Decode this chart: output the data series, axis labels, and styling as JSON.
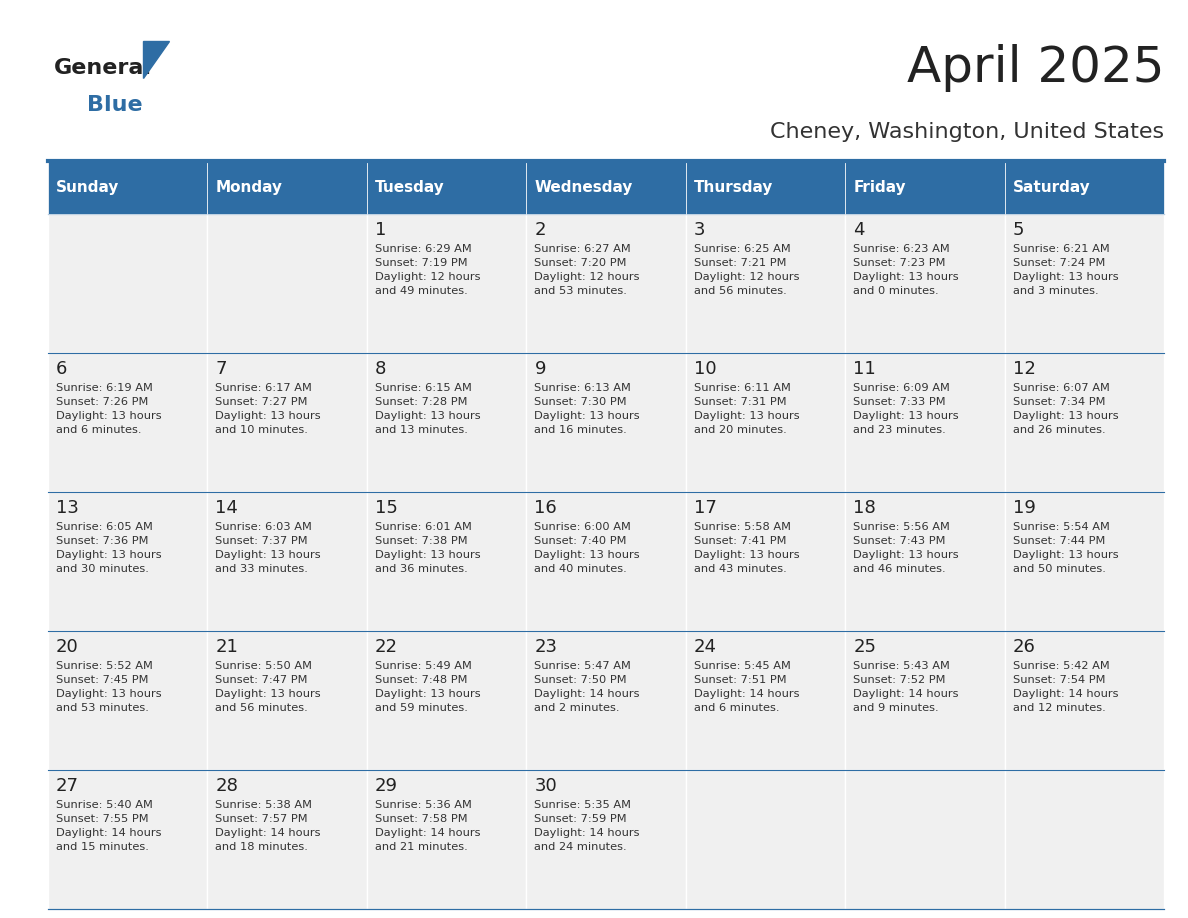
{
  "title": "April 2025",
  "subtitle": "Cheney, Washington, United States",
  "header_color": "#2E6DA4",
  "header_text_color": "#FFFFFF",
  "cell_bg_color": "#F0F0F0",
  "day_names": [
    "Sunday",
    "Monday",
    "Tuesday",
    "Wednesday",
    "Thursday",
    "Friday",
    "Saturday"
  ],
  "weeks": [
    [
      {
        "day": "",
        "info": ""
      },
      {
        "day": "",
        "info": ""
      },
      {
        "day": "1",
        "info": "Sunrise: 6:29 AM\nSunset: 7:19 PM\nDaylight: 12 hours\nand 49 minutes."
      },
      {
        "day": "2",
        "info": "Sunrise: 6:27 AM\nSunset: 7:20 PM\nDaylight: 12 hours\nand 53 minutes."
      },
      {
        "day": "3",
        "info": "Sunrise: 6:25 AM\nSunset: 7:21 PM\nDaylight: 12 hours\nand 56 minutes."
      },
      {
        "day": "4",
        "info": "Sunrise: 6:23 AM\nSunset: 7:23 PM\nDaylight: 13 hours\nand 0 minutes."
      },
      {
        "day": "5",
        "info": "Sunrise: 6:21 AM\nSunset: 7:24 PM\nDaylight: 13 hours\nand 3 minutes."
      }
    ],
    [
      {
        "day": "6",
        "info": "Sunrise: 6:19 AM\nSunset: 7:26 PM\nDaylight: 13 hours\nand 6 minutes."
      },
      {
        "day": "7",
        "info": "Sunrise: 6:17 AM\nSunset: 7:27 PM\nDaylight: 13 hours\nand 10 minutes."
      },
      {
        "day": "8",
        "info": "Sunrise: 6:15 AM\nSunset: 7:28 PM\nDaylight: 13 hours\nand 13 minutes."
      },
      {
        "day": "9",
        "info": "Sunrise: 6:13 AM\nSunset: 7:30 PM\nDaylight: 13 hours\nand 16 minutes."
      },
      {
        "day": "10",
        "info": "Sunrise: 6:11 AM\nSunset: 7:31 PM\nDaylight: 13 hours\nand 20 minutes."
      },
      {
        "day": "11",
        "info": "Sunrise: 6:09 AM\nSunset: 7:33 PM\nDaylight: 13 hours\nand 23 minutes."
      },
      {
        "day": "12",
        "info": "Sunrise: 6:07 AM\nSunset: 7:34 PM\nDaylight: 13 hours\nand 26 minutes."
      }
    ],
    [
      {
        "day": "13",
        "info": "Sunrise: 6:05 AM\nSunset: 7:36 PM\nDaylight: 13 hours\nand 30 minutes."
      },
      {
        "day": "14",
        "info": "Sunrise: 6:03 AM\nSunset: 7:37 PM\nDaylight: 13 hours\nand 33 minutes."
      },
      {
        "day": "15",
        "info": "Sunrise: 6:01 AM\nSunset: 7:38 PM\nDaylight: 13 hours\nand 36 minutes."
      },
      {
        "day": "16",
        "info": "Sunrise: 6:00 AM\nSunset: 7:40 PM\nDaylight: 13 hours\nand 40 minutes."
      },
      {
        "day": "17",
        "info": "Sunrise: 5:58 AM\nSunset: 7:41 PM\nDaylight: 13 hours\nand 43 minutes."
      },
      {
        "day": "18",
        "info": "Sunrise: 5:56 AM\nSunset: 7:43 PM\nDaylight: 13 hours\nand 46 minutes."
      },
      {
        "day": "19",
        "info": "Sunrise: 5:54 AM\nSunset: 7:44 PM\nDaylight: 13 hours\nand 50 minutes."
      }
    ],
    [
      {
        "day": "20",
        "info": "Sunrise: 5:52 AM\nSunset: 7:45 PM\nDaylight: 13 hours\nand 53 minutes."
      },
      {
        "day": "21",
        "info": "Sunrise: 5:50 AM\nSunset: 7:47 PM\nDaylight: 13 hours\nand 56 minutes."
      },
      {
        "day": "22",
        "info": "Sunrise: 5:49 AM\nSunset: 7:48 PM\nDaylight: 13 hours\nand 59 minutes."
      },
      {
        "day": "23",
        "info": "Sunrise: 5:47 AM\nSunset: 7:50 PM\nDaylight: 14 hours\nand 2 minutes."
      },
      {
        "day": "24",
        "info": "Sunrise: 5:45 AM\nSunset: 7:51 PM\nDaylight: 14 hours\nand 6 minutes."
      },
      {
        "day": "25",
        "info": "Sunrise: 5:43 AM\nSunset: 7:52 PM\nDaylight: 14 hours\nand 9 minutes."
      },
      {
        "day": "26",
        "info": "Sunrise: 5:42 AM\nSunset: 7:54 PM\nDaylight: 14 hours\nand 12 minutes."
      }
    ],
    [
      {
        "day": "27",
        "info": "Sunrise: 5:40 AM\nSunset: 7:55 PM\nDaylight: 14 hours\nand 15 minutes."
      },
      {
        "day": "28",
        "info": "Sunrise: 5:38 AM\nSunset: 7:57 PM\nDaylight: 14 hours\nand 18 minutes."
      },
      {
        "day": "29",
        "info": "Sunrise: 5:36 AM\nSunset: 7:58 PM\nDaylight: 14 hours\nand 21 minutes."
      },
      {
        "day": "30",
        "info": "Sunrise: 5:35 AM\nSunset: 7:59 PM\nDaylight: 14 hours\nand 24 minutes."
      },
      {
        "day": "",
        "info": ""
      },
      {
        "day": "",
        "info": ""
      },
      {
        "day": "",
        "info": ""
      }
    ]
  ],
  "n_weeks": 5,
  "n_cols": 7,
  "logo_general_color": "#222222",
  "logo_blue_color": "#2E6DA4",
  "title_fontsize": 36,
  "subtitle_fontsize": 16,
  "header_fontsize": 11,
  "day_num_fontsize": 13,
  "info_fontsize": 8.2
}
